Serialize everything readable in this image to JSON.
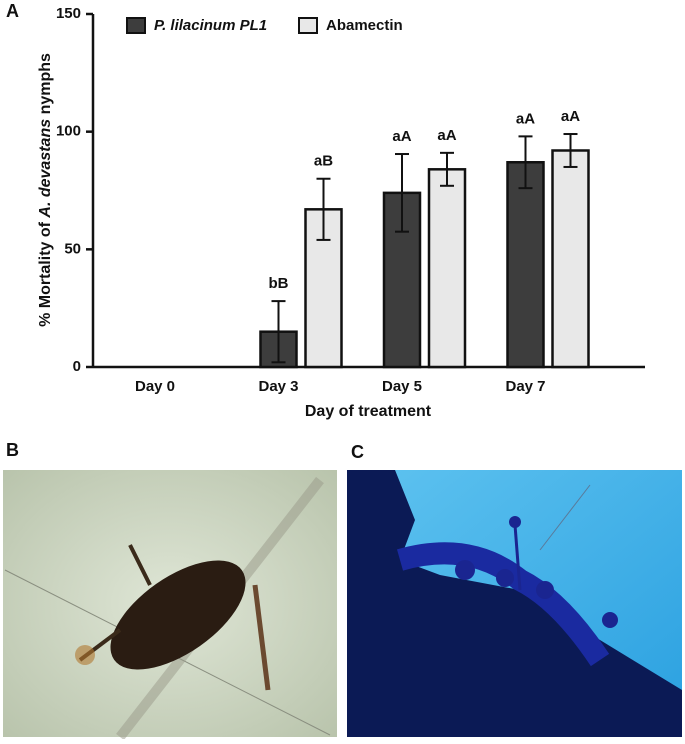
{
  "panel_labels": [
    "A",
    "B",
    "C"
  ],
  "chart_data": {
    "type": "bar",
    "ylabel": [
      "% Mortality of ",
      "A. devastans",
      " nymphs"
    ],
    "xlabel": "Day of treatment",
    "categories": [
      "Day 0",
      "Day 3",
      "Day 5",
      "Day 7"
    ],
    "series": [
      {
        "name": "P. lilacinum PL1",
        "color": "#3d3d3d",
        "values": [
          0,
          15,
          74,
          87
        ],
        "errors": [
          0,
          13,
          16.5,
          11
        ],
        "annotations": [
          null,
          "bB",
          "aA",
          "aA"
        ]
      },
      {
        "name": "Abamectin",
        "color": "#e8e8e8",
        "values": [
          0,
          67,
          84,
          92
        ],
        "errors": [
          0,
          13,
          7,
          7
        ],
        "annotations": [
          null,
          "aB",
          "aA",
          "aA"
        ]
      }
    ],
    "ylim": [
      0,
      150
    ],
    "yticks": [
      0,
      50,
      100,
      150
    ],
    "grid": false
  }
}
